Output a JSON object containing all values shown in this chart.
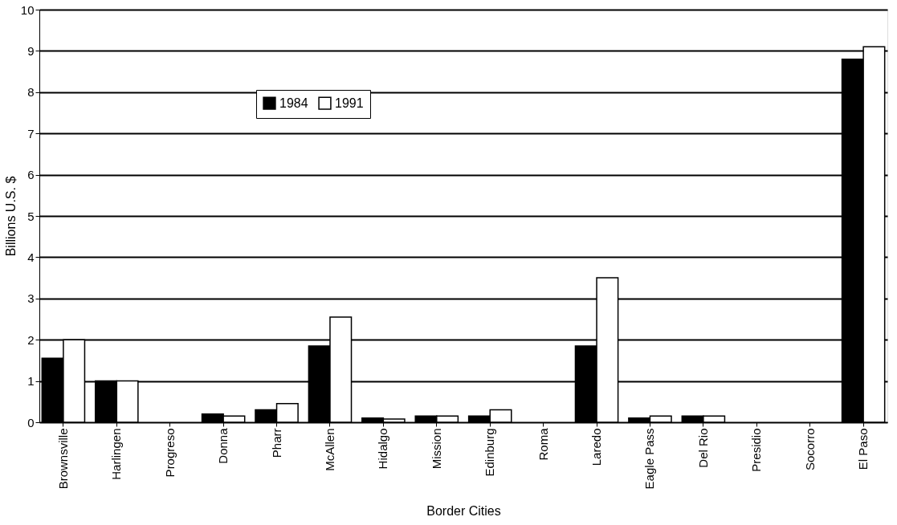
{
  "chart_data": {
    "type": "bar",
    "xlabel": "Border  Cities",
    "ylabel": "Billions U.S. $",
    "categories": [
      "Brownsville",
      "Harlingen",
      "Progreso",
      "Donna",
      "Pharr",
      "McAllen",
      "Hidalgo",
      "Mission",
      "Edinburg",
      "Roma",
      "Laredo",
      "Eagle Pass",
      "Del Rio",
      "Presidio",
      "Socorro",
      "El Paso"
    ],
    "series": [
      {
        "name": "1984",
        "color": "#000000",
        "values": [
          1.55,
          1.0,
          null,
          0.2,
          0.3,
          1.85,
          0.1,
          0.15,
          0.15,
          null,
          1.85,
          0.1,
          0.15,
          null,
          null,
          8.8
        ]
      },
      {
        "name": "1991",
        "color": "#ffffff",
        "values": [
          2.0,
          1.0,
          null,
          0.15,
          0.45,
          2.55,
          0.08,
          0.15,
          0.3,
          null,
          3.5,
          0.15,
          0.15,
          null,
          null,
          9.1
        ]
      }
    ],
    "ylim": [
      0,
      10
    ],
    "yticks": [
      0,
      1,
      2,
      3,
      4,
      5,
      6,
      7,
      8,
      9,
      10
    ],
    "grid": "y",
    "legend": "top left"
  }
}
